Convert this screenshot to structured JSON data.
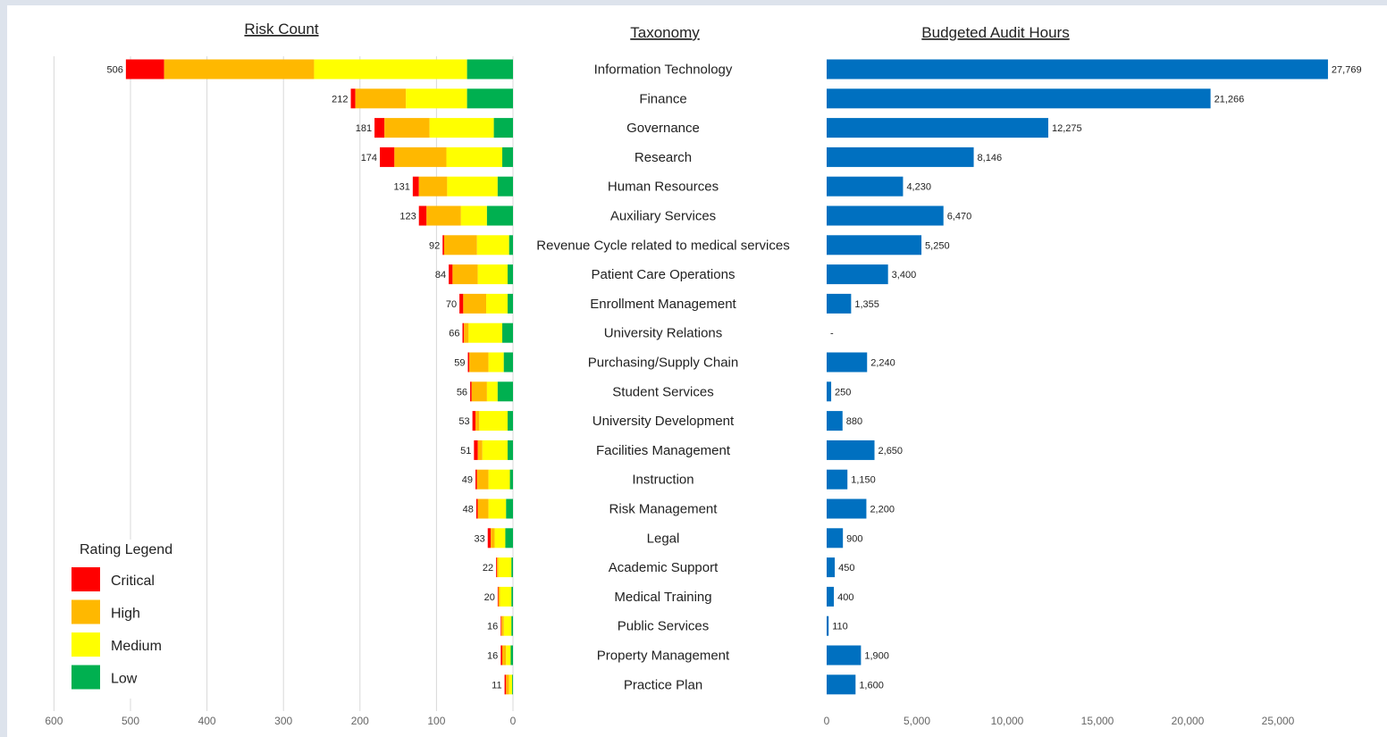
{
  "colors": {
    "critical": "#ff0000",
    "high": "#ffb800",
    "medium": "#ffff00",
    "low": "#00b050",
    "hours": "#0070c0"
  },
  "chart_data": [
    {
      "type": "bar",
      "orientation": "horizontal-reversed",
      "stacked": true,
      "title": "Risk Count",
      "xlim": [
        0,
        600
      ],
      "ticks": [
        0,
        100,
        200,
        300,
        400,
        500,
        600
      ],
      "grid": true,
      "legend": {
        "title": "Rating Legend",
        "placement": "bottom-left",
        "entries": [
          "Critical",
          "High",
          "Medium",
          "Low"
        ]
      },
      "categories": [
        "Information Technology",
        "Finance",
        "Governance",
        "Research",
        "Human Resources",
        "Auxiliary Services",
        "Revenue Cycle related to medical services",
        "Patient Care Operations",
        "Enrollment Management",
        "University Relations",
        "Purchasing/Supply Chain",
        "Student Services",
        "University Development",
        "Facilities Management",
        "Instruction",
        "Risk Management",
        "Legal",
        "Academic Support",
        "Medical Training",
        "Public Services",
        "Property Management",
        "Practice Plan"
      ],
      "totals": [
        "506",
        "212",
        "181",
        "174",
        "131",
        "123",
        "92",
        "84",
        "70",
        "66",
        "59",
        "56",
        "53",
        "51",
        "49",
        "48",
        "33",
        "22",
        "20",
        "16",
        "16",
        "11"
      ],
      "series": [
        {
          "name": "Critical",
          "values": [
            50,
            6,
            13,
            19,
            8,
            10,
            2,
            5,
            5,
            2,
            2,
            2,
            4,
            5,
            2,
            2,
            4,
            1,
            1,
            1,
            2,
            2
          ]
        },
        {
          "name": "High",
          "values": [
            196,
            66,
            59,
            68,
            37,
            45,
            43,
            33,
            30,
            6,
            25,
            20,
            5,
            6,
            15,
            14,
            5,
            2,
            2,
            3,
            5,
            4
          ]
        },
        {
          "name": "Medium",
          "values": [
            200,
            80,
            84,
            73,
            66,
            34,
            42,
            39,
            28,
            44,
            20,
            14,
            37,
            33,
            28,
            23,
            14,
            17,
            15,
            10,
            6,
            4
          ]
        },
        {
          "name": "Low",
          "values": [
            60,
            60,
            25,
            14,
            20,
            34,
            5,
            7,
            7,
            14,
            12,
            20,
            7,
            7,
            4,
            9,
            10,
            2,
            2,
            2,
            3,
            1
          ]
        }
      ]
    },
    {
      "type": "table",
      "title": "Taxonomy"
    },
    {
      "type": "bar",
      "orientation": "horizontal",
      "title": "Budgeted Audit Hours",
      "xlim": [
        0,
        25000
      ],
      "ticks": [
        0,
        5000,
        10000,
        15000,
        20000,
        25000
      ],
      "tick_labels": [
        "0",
        "5,000",
        "10,000",
        "15,000",
        "20,000",
        "25,000"
      ],
      "grid": false,
      "categories": [
        "Information Technology",
        "Finance",
        "Governance",
        "Research",
        "Human Resources",
        "Auxiliary Services",
        "Revenue Cycle related to medical services",
        "Patient Care Operations",
        "Enrollment Management",
        "University Relations",
        "Purchasing/Supply Chain",
        "Student Services",
        "University Development",
        "Facilities Management",
        "Instruction",
        "Risk Management",
        "Legal",
        "Academic Support",
        "Medical Training",
        "Public Services",
        "Property Management",
        "Practice Plan"
      ],
      "values": [
        27769,
        21266,
        12275,
        8146,
        4230,
        6470,
        5250,
        3400,
        1355,
        0,
        2240,
        250,
        880,
        2650,
        1150,
        2200,
        900,
        450,
        400,
        110,
        1900,
        1600
      ],
      "value_labels": [
        "27,769",
        "21,266",
        "12,275",
        "8,146",
        "4,230",
        "6,470",
        "5,250",
        "3,400",
        "1,355",
        "-",
        "2,240",
        "250",
        "880",
        "2,650",
        "1,150",
        "2,200",
        "900",
        "450",
        "400",
        "110",
        "1,900",
        "1,600"
      ]
    }
  ]
}
